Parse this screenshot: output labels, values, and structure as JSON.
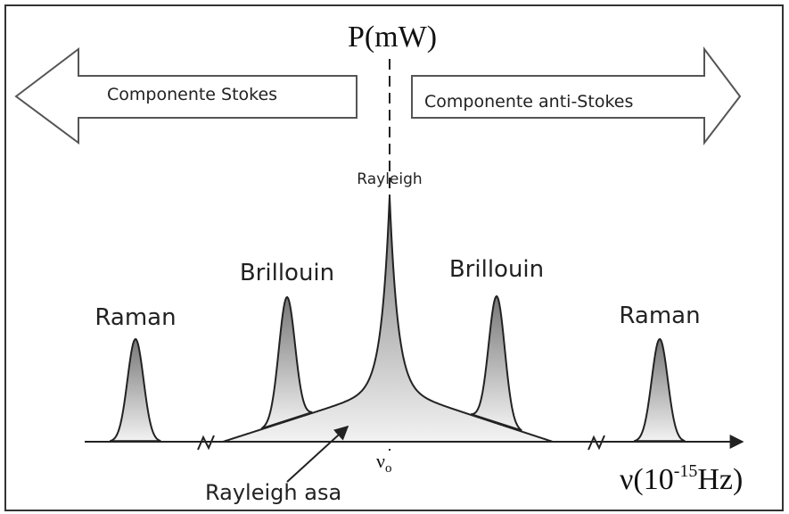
{
  "y_axis_label": "P(mW)",
  "stokes_label": "Componente Stokes",
  "anti_stokes_label": "Componente anti-Stokes",
  "peaks": [
    {
      "label": "Raman"
    },
    {
      "label": "Brillouin"
    },
    {
      "label": "Rayleigh"
    },
    {
      "label": "Brillouin"
    },
    {
      "label": "Raman"
    }
  ],
  "center_label": {
    "symbol": "ν",
    "subscript": "o"
  },
  "wing_label": "Rayleigh asa",
  "x_axis_label": {
    "prefix": "ν(10",
    "superscript": "-15",
    "suffix": "Hz)"
  }
}
